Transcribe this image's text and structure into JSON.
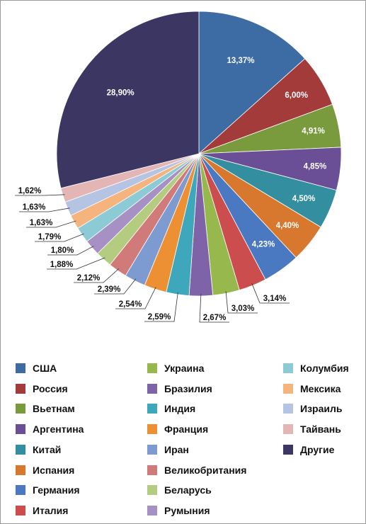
{
  "chart_data": {
    "type": "pie",
    "categories": [
      "США",
      "Россия",
      "Вьетнам",
      "Аргентина",
      "Китай",
      "Испания",
      "Германия",
      "Италия",
      "Украина",
      "Бразилия",
      "Индия",
      "Франция",
      "Иран",
      "Великобритания",
      "Беларусь",
      "Румыния",
      "Колумбия",
      "Мексика",
      "Израиль",
      "Тайвань",
      "Другие"
    ],
    "values": [
      13.37,
      6.0,
      4.91,
      4.85,
      4.5,
      4.4,
      4.23,
      3.14,
      3.03,
      2.67,
      2.59,
      2.54,
      2.39,
      2.12,
      1.88,
      1.8,
      1.79,
      1.63,
      1.63,
      1.62,
      28.9
    ],
    "labels": [
      "13,37%",
      "6,00%",
      "4,91%",
      "4,85%",
      "4,50%",
      "4,40%",
      "4,23%",
      "3,14%",
      "3,03%",
      "2,67%",
      "2,59%",
      "2,54%",
      "2,39%",
      "2,12%",
      "1,88%",
      "1,80%",
      "1,79%",
      "1,63%",
      "1,63%",
      "1,62%",
      "28,90%"
    ],
    "colors": [
      "#3d6ba3",
      "#a33b3b",
      "#7a9a3e",
      "#6b4f96",
      "#338f9f",
      "#d8782f",
      "#4a79c2",
      "#cc4d4d",
      "#97b84c",
      "#7f63a8",
      "#3ea7bb",
      "#ed8f33",
      "#7d9bd1",
      "#d07a7a",
      "#b3cc80",
      "#a690c4",
      "#8ccad6",
      "#f5b37d",
      "#b5c4e3",
      "#e3b5b5",
      "#3c3762"
    ],
    "legend_position": "bottom"
  }
}
